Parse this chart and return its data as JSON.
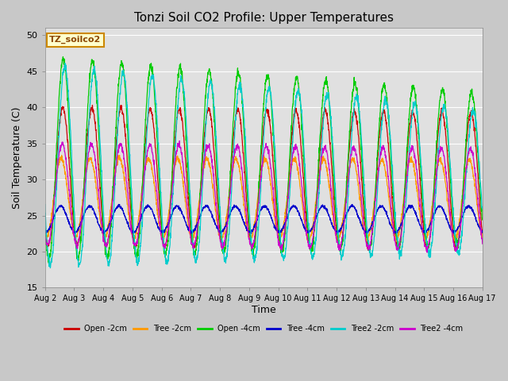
{
  "title": "Tonzi Soil CO2 Profile: Upper Temperatures",
  "xlabel": "Time",
  "ylabel": "Soil Temperature (C)",
  "ylim": [
    15,
    51
  ],
  "yticks": [
    15,
    20,
    25,
    30,
    35,
    40,
    45,
    50
  ],
  "figsize": [
    6.4,
    4.8
  ],
  "dpi": 100,
  "bg_color": "#c8c8c8",
  "plot_bg_color": "#e0e0e0",
  "annotation_text": "TZ_soilco2",
  "annotation_color": "#8B4500",
  "annotation_bg": "#ffffcc",
  "annotation_border": "#cc8800",
  "series": [
    {
      "label": "Open -2cm",
      "color": "#cc0000"
    },
    {
      "label": "Tree -2cm",
      "color": "#ff9900"
    },
    {
      "label": "Open -4cm",
      "color": "#00cc00"
    },
    {
      "label": "Tree -4cm",
      "color": "#0000cc"
    },
    {
      "label": "Tree2 -2cm",
      "color": "#00cccc"
    },
    {
      "label": "Tree2 -4cm",
      "color": "#cc00cc"
    }
  ],
  "n_days": 15,
  "pts_per_day": 144,
  "start_day": 2,
  "amplitudes": [
    9.5,
    5.5,
    14.0,
    1.8,
    14.0,
    7.0
  ],
  "means": [
    30.5,
    27.5,
    33.0,
    24.5,
    32.0,
    28.0
  ],
  "phase_shifts": [
    0.02,
    0.08,
    0.0,
    0.1,
    -0.05,
    0.04
  ],
  "day_amplitude_decay": [
    0.0,
    0.0,
    0.25,
    0.0,
    0.3,
    0.0
  ],
  "mean_decay": [
    -0.05,
    -0.02,
    -0.1,
    0.0,
    -0.15,
    -0.05
  ],
  "noise": [
    0.2,
    0.2,
    0.3,
    0.1,
    0.3,
    0.2
  ],
  "grid_color": "#ffffff",
  "grid_lw": 0.8
}
